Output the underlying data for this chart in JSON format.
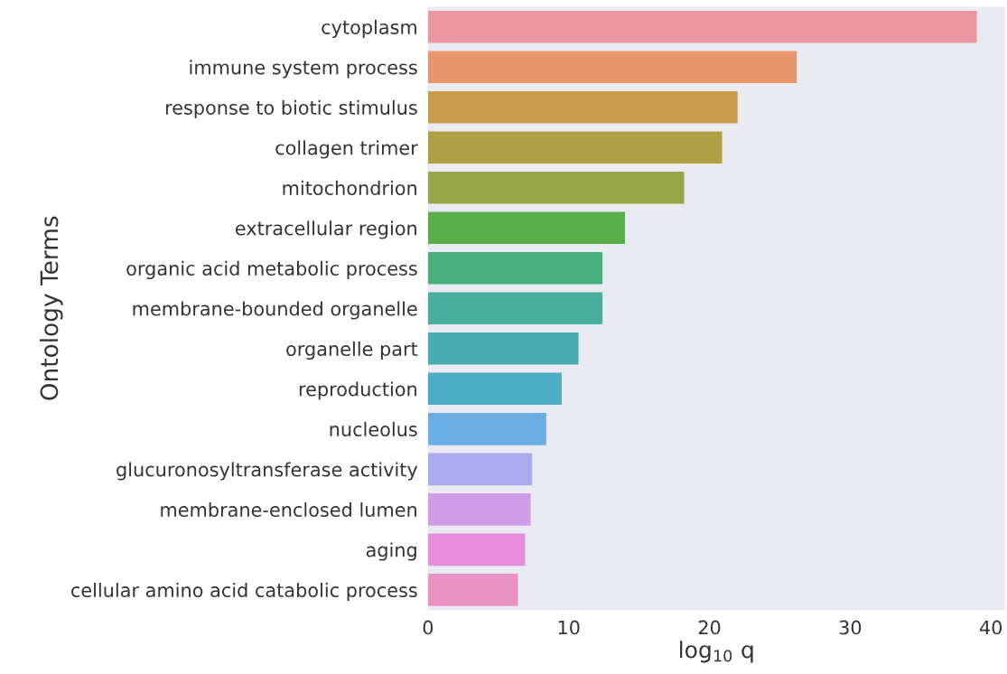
{
  "chart_data": {
    "type": "bar",
    "orientation": "horizontal",
    "xlabel": "log$_{10}$ q",
    "ylabel": "Ontology Terms",
    "categories": [
      "cytoplasm",
      "immune system process",
      "response to biotic stimulus",
      "collagen trimer",
      "mitochondrion",
      "extracellular region",
      "organic acid metabolic process",
      "membrane-bounded organelle",
      "organelle part",
      "reproduction",
      "nucleolus",
      "glucuronosyltransferase activity",
      "membrane-enclosed lumen",
      "aging",
      "cellular amino acid catabolic process"
    ],
    "values": [
      39.0,
      26.2,
      22.0,
      20.9,
      18.2,
      14.0,
      12.4,
      12.4,
      10.7,
      9.5,
      8.4,
      7.4,
      7.3,
      6.9,
      6.4
    ],
    "colors": [
      "#eb97a2",
      "#e7966e",
      "#c89b4c",
      "#b09f45",
      "#96a546",
      "#5aad4b",
      "#48b07c",
      "#49ae9b",
      "#4aacb0",
      "#4caec5",
      "#6aaee3",
      "#aca9ec",
      "#d09de8",
      "#e68bdd",
      "#e991c0"
    ],
    "xlim": [
      0,
      41
    ],
    "xticks": [
      0,
      10,
      20,
      30,
      40
    ],
    "grid": false
  }
}
